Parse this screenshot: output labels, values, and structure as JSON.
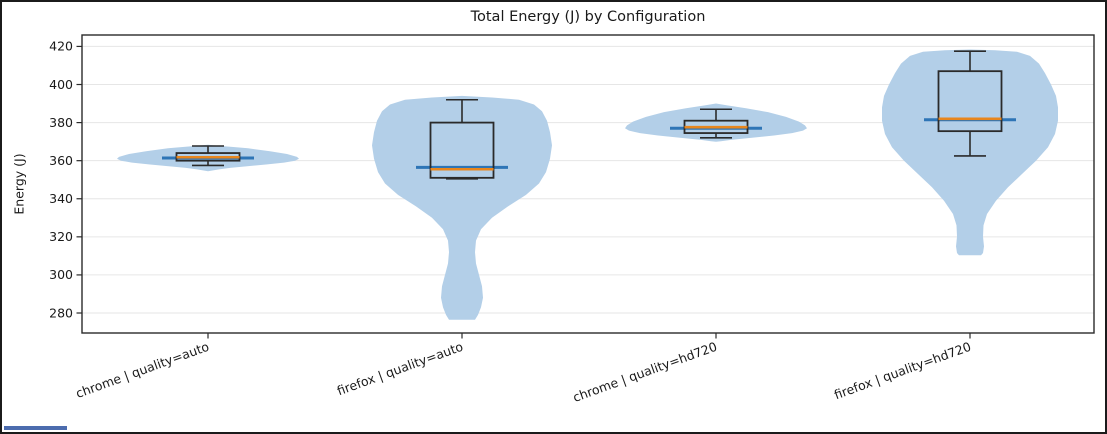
{
  "window": {
    "background": "#ffffff",
    "border_color": "#1b1b1b",
    "sliver_color": "#4c6cae"
  },
  "chart_data": {
    "type": "violin+box",
    "title": "Total Energy (J) by Configuration",
    "ylabel": "Energy (J)",
    "xlabel": "",
    "categories": [
      "chrome | quality=auto",
      "firefox | quality=auto",
      "chrome | quality=hd720",
      "firefox | quality=hd720"
    ],
    "yticks": [
      280,
      300,
      320,
      340,
      360,
      380,
      400,
      420
    ],
    "ylim": [
      269.5,
      426
    ],
    "grid": "horizontal",
    "legend": "none",
    "x_tick_label_rotation_deg": 20,
    "colors": {
      "violin_fill": "#b3cfe8",
      "box_edge": "#2a2a2a",
      "median": "#e8861d",
      "mean": "#2e75b6",
      "grid": "#e6e6e6",
      "axis": "#2a2a2a",
      "text": "#1a1a1a"
    },
    "series": [
      {
        "label": "chrome | quality=auto",
        "box": {
          "whislo": 357.5,
          "q1": 360.0,
          "med": 361.8,
          "mean": 361.4,
          "q3": 364.0,
          "whishi": 367.7
        },
        "violin_profile": [
          [
            368.4,
            0
          ],
          [
            367.5,
            18
          ],
          [
            366.5,
            40
          ],
          [
            365,
            62
          ],
          [
            363.5,
            79
          ],
          [
            362,
            89
          ],
          [
            361,
            91
          ],
          [
            360,
            87
          ],
          [
            359,
            76
          ],
          [
            358,
            58
          ],
          [
            357,
            38
          ],
          [
            356.2,
            22
          ],
          [
            355.4,
            11
          ],
          [
            354.4,
            0
          ]
        ]
      },
      {
        "label": "firefox | quality=auto",
        "box": {
          "whislo": 350.5,
          "q1": 351.0,
          "med": 355.5,
          "mean": 356.5,
          "q3": 380.0,
          "whishi": 392.0
        },
        "violin_profile": [
          [
            394,
            0
          ],
          [
            393.2,
            30
          ],
          [
            392,
            57
          ],
          [
            389.5,
            72
          ],
          [
            386,
            80
          ],
          [
            381,
            85
          ],
          [
            375,
            88
          ],
          [
            368,
            90
          ],
          [
            361,
            88
          ],
          [
            354,
            84
          ],
          [
            348,
            77
          ],
          [
            342,
            64
          ],
          [
            336,
            46
          ],
          [
            330,
            30
          ],
          [
            324,
            19
          ],
          [
            318,
            14
          ],
          [
            312,
            13
          ],
          [
            306,
            14
          ],
          [
            300,
            17
          ],
          [
            294,
            20
          ],
          [
            288,
            21
          ],
          [
            283,
            19
          ],
          [
            279,
            16
          ],
          [
            276.5,
            13
          ]
        ]
      },
      {
        "label": "chrome | quality=hd720",
        "box": {
          "whislo": 372.0,
          "q1": 374.5,
          "med": 377.6,
          "mean": 377.0,
          "q3": 381.0,
          "whishi": 387.0
        },
        "violin_profile": [
          [
            390,
            0
          ],
          [
            389,
            12
          ],
          [
            387.5,
            30
          ],
          [
            385.5,
            52
          ],
          [
            383,
            70
          ],
          [
            380.5,
            83
          ],
          [
            378.5,
            89
          ],
          [
            377,
            91
          ],
          [
            375.8,
            87
          ],
          [
            374.5,
            76
          ],
          [
            373.2,
            58
          ],
          [
            372,
            36
          ],
          [
            371,
            16
          ],
          [
            370.2,
            5
          ],
          [
            369.9,
            0
          ]
        ]
      },
      {
        "label": "firefox | quality=hd720",
        "box": {
          "whislo": 362.5,
          "q1": 375.5,
          "med": 382.0,
          "mean": 381.5,
          "q3": 407.0,
          "whishi": 417.5
        },
        "violin_profile": [
          [
            418.4,
            0
          ],
          [
            418,
            25
          ],
          [
            417.2,
            47
          ],
          [
            415,
            60
          ],
          [
            411,
            69
          ],
          [
            406,
            75
          ],
          [
            400,
            81
          ],
          [
            394,
            86
          ],
          [
            388,
            88
          ],
          [
            381,
            88
          ],
          [
            374,
            85
          ],
          [
            367,
            78
          ],
          [
            360,
            66
          ],
          [
            353,
            52
          ],
          [
            346,
            38
          ],
          [
            339,
            26
          ],
          [
            332,
            17
          ],
          [
            326,
            13.5
          ],
          [
            320,
            13
          ],
          [
            315,
            14
          ],
          [
            311.5,
            13
          ],
          [
            310.3,
            11
          ]
        ]
      }
    ]
  }
}
